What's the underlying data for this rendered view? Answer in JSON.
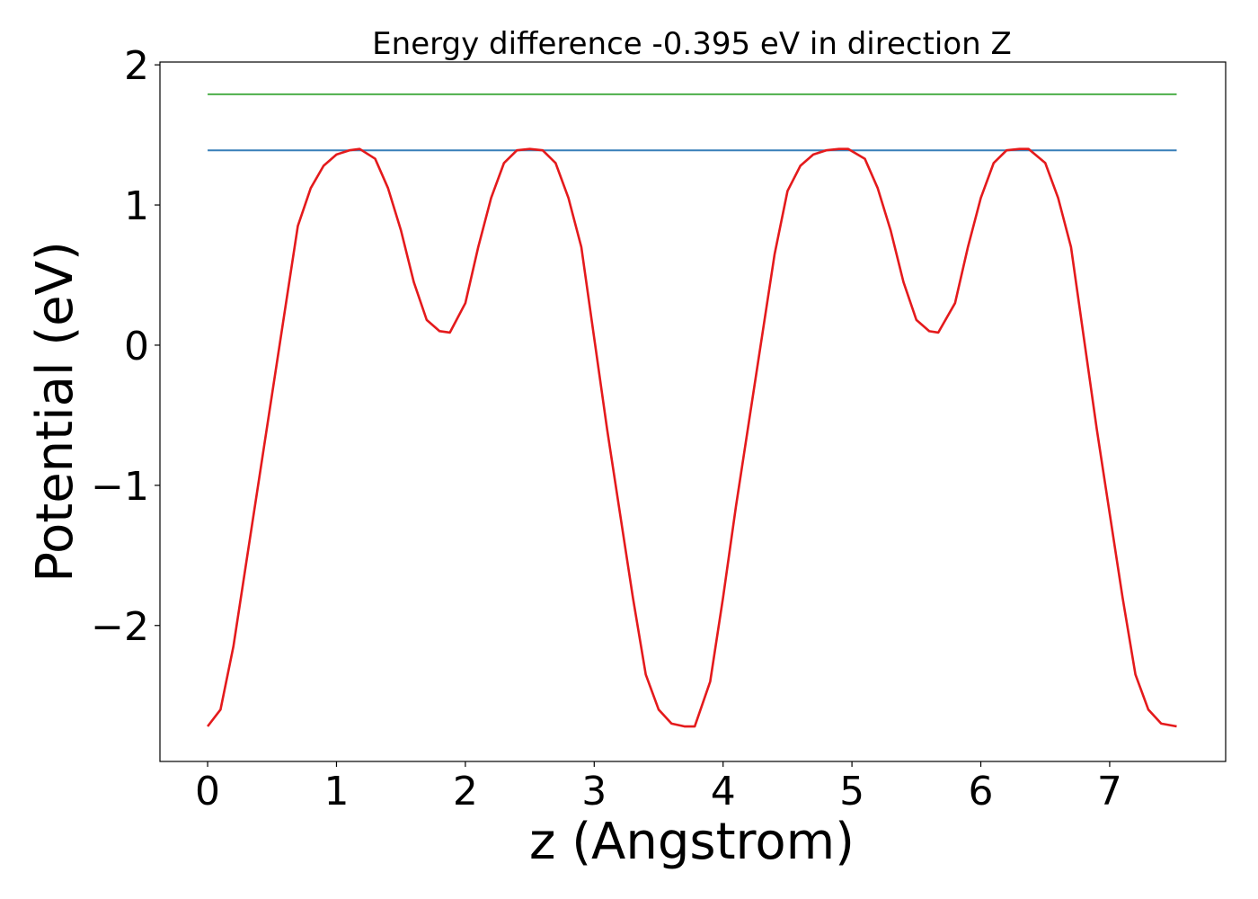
{
  "chart_data": {
    "type": "line",
    "title": "Energy difference -0.395 eV in direction Z",
    "xlabel": "z (Angstrom)",
    "ylabel": "Potential (eV)",
    "xlim": [
      -0.37,
      7.9
    ],
    "ylim": [
      -2.97,
      2.02
    ],
    "xticks": [
      {
        "value": 0,
        "label": "0"
      },
      {
        "value": 1,
        "label": "1"
      },
      {
        "value": 2,
        "label": "2"
      },
      {
        "value": 3,
        "label": "3"
      },
      {
        "value": 4,
        "label": "4"
      },
      {
        "value": 5,
        "label": "5"
      },
      {
        "value": 6,
        "label": "6"
      },
      {
        "value": 7,
        "label": "7"
      }
    ],
    "yticks": [
      {
        "value": 2,
        "label": "2"
      },
      {
        "value": 1,
        "label": "1"
      },
      {
        "value": 0,
        "label": "0"
      },
      {
        "value": -1,
        "label": "−1"
      },
      {
        "value": -2,
        "label": "−2"
      }
    ],
    "grid": false,
    "legend": "none",
    "series": [
      {
        "color": "#4daf4a",
        "x": [
          0,
          7.52
        ],
        "y": [
          1.79,
          1.79
        ]
      },
      {
        "color": "#377eb8",
        "x": [
          0,
          7.52
        ],
        "y": [
          1.39,
          1.39
        ]
      },
      {
        "color": "#e41a1c",
        "x": [
          0,
          0.1,
          0.2,
          0.3,
          0.4,
          0.5,
          0.6,
          0.7,
          0.8,
          0.9,
          1.0,
          1.1,
          1.18,
          1.3,
          1.4,
          1.5,
          1.6,
          1.7,
          1.8,
          1.88,
          2.0,
          2.1,
          2.2,
          2.3,
          2.4,
          2.5,
          2.6,
          2.7,
          2.8,
          2.9,
          3.0,
          3.1,
          3.2,
          3.3,
          3.4,
          3.5,
          3.6,
          3.7,
          3.78,
          3.9,
          4.0,
          4.1,
          4.2,
          4.3,
          4.4,
          4.5,
          4.6,
          4.7,
          4.8,
          4.9,
          4.97,
          5.1,
          5.2,
          5.3,
          5.4,
          5.5,
          5.6,
          5.67,
          5.8,
          5.9,
          6.0,
          6.1,
          6.2,
          6.3,
          6.37,
          6.5,
          6.6,
          6.7,
          6.8,
          6.9,
          7.0,
          7.1,
          7.2,
          7.3,
          7.4,
          7.52
        ],
        "y": [
          -2.72,
          -2.6,
          -2.15,
          -1.55,
          -0.95,
          -0.35,
          0.25,
          0.85,
          1.12,
          1.28,
          1.36,
          1.39,
          1.4,
          1.33,
          1.12,
          0.82,
          0.45,
          0.18,
          0.1,
          0.09,
          0.3,
          0.7,
          1.05,
          1.3,
          1.39,
          1.4,
          1.39,
          1.3,
          1.05,
          0.7,
          0.05,
          -0.6,
          -1.2,
          -1.8,
          -2.35,
          -2.6,
          -2.7,
          -2.72,
          -2.72,
          -2.4,
          -1.8,
          -1.15,
          -0.55,
          0.05,
          0.65,
          1.1,
          1.28,
          1.36,
          1.39,
          1.4,
          1.4,
          1.33,
          1.12,
          0.82,
          0.45,
          0.18,
          0.1,
          0.09,
          0.3,
          0.7,
          1.05,
          1.3,
          1.39,
          1.4,
          1.4,
          1.3,
          1.05,
          0.7,
          0.05,
          -0.6,
          -1.2,
          -1.8,
          -2.35,
          -2.6,
          -2.7,
          -2.72
        ]
      }
    ]
  }
}
